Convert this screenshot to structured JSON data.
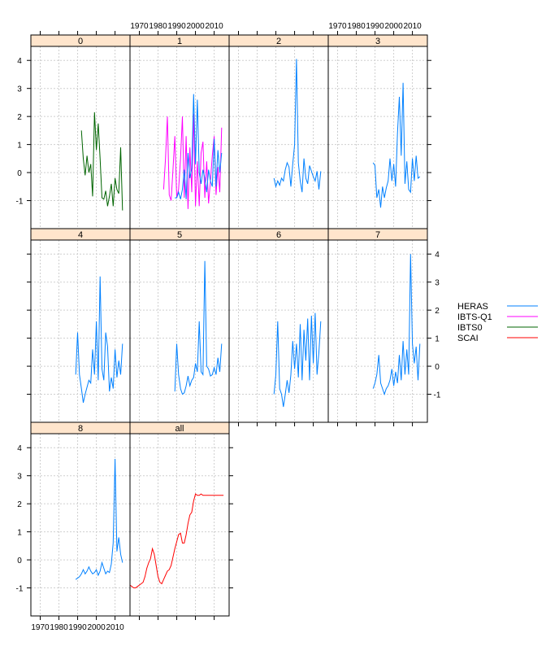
{
  "chart_data": {
    "type": "line",
    "title": "",
    "xlabel": "",
    "ylabel": "",
    "xlim": [
      1965,
      2018
    ],
    "ylim": [
      -2,
      4.5
    ],
    "x_ticks": [
      1970,
      1980,
      1990,
      2000,
      2010
    ],
    "y_ticks": [
      -1,
      0,
      1,
      2,
      3,
      4
    ],
    "grid": true,
    "legend_placement": "right",
    "legend": [
      {
        "name": "HERAS",
        "color": "#0080ff"
      },
      {
        "name": "IBTS-Q1",
        "color": "#ff00ff"
      },
      {
        "name": "IBTS0",
        "color": "#006400"
      },
      {
        "name": "SCAI",
        "color": "#ff0000"
      }
    ],
    "panels": [
      {
        "label": "0",
        "series": [
          {
            "name": "IBTS0",
            "x": [
              1992,
              1993,
              1994,
              1995,
              1996,
              1997,
              1998,
              1999,
              2000,
              2001,
              2002,
              2003,
              2004,
              2005,
              2006,
              2007,
              2008,
              2009,
              2010,
              2011,
              2012,
              2013,
              2014
            ],
            "y": [
              1.5,
              0.5,
              -0.1,
              0.6,
              0.0,
              0.3,
              -0.85,
              2.15,
              0.8,
              1.75,
              0.5,
              -0.9,
              -0.95,
              -0.65,
              -1.2,
              -0.85,
              -0.4,
              -1.2,
              -0.2,
              -0.6,
              -0.75,
              0.9,
              -1.35
            ]
          }
        ]
      },
      {
        "label": "1",
        "series": [
          {
            "name": "IBTS-Q1",
            "x": [
              1983,
              1984,
              1985,
              1986,
              1987,
              1988,
              1989,
              1990,
              1991,
              1992,
              1993,
              1994,
              1995,
              1996,
              1997,
              1998,
              1999,
              2000,
              2001,
              2002,
              2003,
              2004,
              2005,
              2006,
              2007,
              2008,
              2009,
              2010,
              2011,
              2012,
              2013,
              2014
            ],
            "y": [
              -0.6,
              0.5,
              2.0,
              -0.8,
              -1.0,
              0.1,
              1.3,
              -0.9,
              -0.6,
              0.5,
              2.0,
              -0.9,
              1.3,
              -1.3,
              0.9,
              -0.7,
              2.1,
              -1.2,
              0.4,
              -1.2,
              0.7,
              1.1,
              -0.9,
              0.4,
              -1.1,
              -0.3,
              0.6,
              1.3,
              -0.8,
              0.2,
              -0.7,
              1.6
            ]
          },
          {
            "name": "HERAS",
            "x": [
              1989,
              1990,
              1991,
              1992,
              1993,
              1994,
              1995,
              1996,
              1997,
              1998,
              1999,
              2000,
              2001,
              2002,
              2003,
              2004,
              2005,
              2006,
              2007,
              2008,
              2009,
              2010,
              2011,
              2012,
              2013,
              2014
            ],
            "y": [
              -0.9,
              -0.9,
              -0.7,
              -0.95,
              -0.6,
              0.1,
              -0.95,
              0.7,
              -0.2,
              0.15,
              2.8,
              0.3,
              2.6,
              0.0,
              -0.4,
              0.1,
              -0.2,
              -0.7,
              0.1,
              -0.3,
              -0.5,
              1.2,
              -0.5,
              0.8,
              0.0,
              0.7
            ]
          }
        ]
      },
      {
        "label": "2",
        "series": [
          {
            "name": "HERAS",
            "x": [
              1989,
              1990,
              1991,
              1992,
              1993,
              1994,
              1995,
              1996,
              1997,
              1998,
              1999,
              2000,
              2001,
              2002,
              2003,
              2004,
              2005,
              2006,
              2007,
              2008,
              2009,
              2010,
              2011,
              2012,
              2013,
              2014
            ],
            "y": [
              -0.2,
              -0.5,
              -0.3,
              -0.45,
              -0.2,
              -0.3,
              0.1,
              0.35,
              0.2,
              -0.5,
              0.3,
              1.0,
              4.05,
              0.35,
              -0.3,
              -0.7,
              0.5,
              -0.2,
              -0.4,
              0.25,
              0.05,
              -0.15,
              -0.3,
              0.05,
              -0.6,
              0.05
            ]
          }
        ]
      },
      {
        "label": "3",
        "series": [
          {
            "name": "HERAS",
            "x": [
              1989,
              1990,
              1991,
              1992,
              1993,
              1994,
              1995,
              1996,
              1997,
              1998,
              1999,
              2000,
              2001,
              2002,
              2003,
              2004,
              2005,
              2006,
              2007,
              2008,
              2009,
              2010,
              2011,
              2012,
              2013,
              2014
            ],
            "y": [
              0.35,
              0.25,
              -0.9,
              -0.6,
              -1.25,
              -0.5,
              -0.9,
              -0.55,
              -0.3,
              0.5,
              -0.3,
              0.3,
              -0.5,
              1.4,
              2.7,
              0.6,
              3.2,
              -0.4,
              0.4,
              -0.6,
              -0.7,
              0.5,
              -0.3,
              0.6,
              -0.2,
              -0.15
            ]
          }
        ]
      },
      {
        "label": "4",
        "series": [
          {
            "name": "HERAS",
            "x": [
              1989,
              1990,
              1991,
              1992,
              1993,
              1994,
              1995,
              1996,
              1997,
              1998,
              1999,
              2000,
              2001,
              2002,
              2003,
              2004,
              2005,
              2006,
              2007,
              2008,
              2009,
              2010,
              2011,
              2012,
              2013,
              2014
            ],
            "y": [
              -0.3,
              1.2,
              -0.3,
              -0.8,
              -1.3,
              -1.0,
              -0.75,
              -0.5,
              -0.6,
              0.6,
              -0.3,
              1.6,
              -0.5,
              3.2,
              -0.1,
              -0.5,
              1.2,
              0.7,
              -0.9,
              -0.4,
              -0.8,
              0.6,
              -0.4,
              0.2,
              -0.3,
              0.8
            ]
          }
        ]
      },
      {
        "label": "5",
        "series": [
          {
            "name": "HERAS",
            "x": [
              1989,
              1990,
              1991,
              1992,
              1993,
              1994,
              1995,
              1996,
              1997,
              1998,
              1999,
              2000,
              2001,
              2002,
              2003,
              2004,
              2005,
              2006,
              2007,
              2008,
              2009,
              2010,
              2011,
              2012,
              2013,
              2014
            ],
            "y": [
              -0.9,
              0.8,
              -0.3,
              -0.8,
              -1.0,
              -0.95,
              -0.7,
              -0.35,
              -0.7,
              -0.5,
              -0.4,
              0.1,
              -0.2,
              1.6,
              -0.2,
              -0.3,
              3.75,
              0.0,
              -0.1,
              -0.35,
              -0.3,
              -0.05,
              -0.3,
              0.3,
              -0.2,
              0.8
            ]
          }
        ]
      },
      {
        "label": "6",
        "series": [
          {
            "name": "HERAS",
            "x": [
              1989,
              1990,
              1991,
              1992,
              1993,
              1994,
              1995,
              1996,
              1997,
              1998,
              1999,
              2000,
              2001,
              2002,
              2003,
              2004,
              2005,
              2006,
              2007,
              2008,
              2009,
              2010,
              2011,
              2012,
              2013,
              2014
            ],
            "y": [
              -1.0,
              -0.3,
              1.6,
              -0.8,
              -1.0,
              -1.45,
              -1.0,
              -0.5,
              -0.95,
              -0.3,
              0.9,
              -0.1,
              0.8,
              -0.4,
              1.5,
              -0.5,
              1.3,
              0.2,
              1.7,
              -0.5,
              1.8,
              0.1,
              1.9,
              -0.3,
              0.5,
              1.6
            ]
          }
        ]
      },
      {
        "label": "7",
        "series": [
          {
            "name": "HERAS",
            "x": [
              1989,
              1990,
              1991,
              1992,
              1993,
              1994,
              1995,
              1996,
              1997,
              1998,
              1999,
              2000,
              2001,
              2002,
              2003,
              2004,
              2005,
              2006,
              2007,
              2008,
              2009,
              2010,
              2011,
              2012,
              2013,
              2014
            ],
            "y": [
              -0.8,
              -0.6,
              -0.3,
              0.4,
              -0.6,
              -0.8,
              -1.0,
              -0.8,
              -0.7,
              -0.5,
              -0.1,
              -0.7,
              -0.2,
              -0.6,
              0.4,
              -0.5,
              0.9,
              -0.3,
              0.6,
              -0.3,
              4.0,
              0.8,
              0.1,
              0.7,
              -0.5,
              0.8
            ]
          }
        ]
      },
      {
        "label": "8",
        "series": [
          {
            "name": "HERAS",
            "x": [
              1989,
              1990,
              1991,
              1992,
              1993,
              1994,
              1995,
              1996,
              1997,
              1998,
              1999,
              2000,
              2001,
              2002,
              2003,
              2004,
              2005,
              2006,
              2007,
              2008,
              2009,
              2010,
              2011,
              2012,
              2013,
              2014
            ],
            "y": [
              -0.7,
              -0.65,
              -0.6,
              -0.5,
              -0.35,
              -0.5,
              -0.4,
              -0.25,
              -0.4,
              -0.5,
              -0.45,
              -0.35,
              -0.55,
              -0.4,
              -0.1,
              -0.3,
              -0.5,
              -0.4,
              -0.45,
              -0.15,
              0.6,
              3.6,
              0.3,
              0.8,
              0.2,
              -0.1
            ]
          }
        ]
      },
      {
        "label": "all",
        "series": [
          {
            "name": "SCAI",
            "x": [
              1965,
              1966,
              1967,
              1968,
              1969,
              1970,
              1971,
              1972,
              1973,
              1974,
              1975,
              1976,
              1977,
              1978,
              1979,
              1980,
              1981,
              1982,
              1983,
              1984,
              1985,
              1986,
              1987,
              1988,
              1989,
              1990,
              1991,
              1992,
              1993,
              1994,
              1995,
              1996,
              1997,
              1998,
              1999,
              2000,
              2001,
              2002,
              2003,
              2004,
              2005,
              2006,
              2007,
              2008,
              2009,
              2010,
              2011,
              2012,
              2013,
              2014,
              2015
            ],
            "y": [
              -0.9,
              -0.95,
              -1.0,
              -1.0,
              -0.95,
              -0.9,
              -0.85,
              -0.8,
              -0.6,
              -0.3,
              -0.1,
              0.05,
              0.4,
              0.2,
              -0.2,
              -0.6,
              -0.8,
              -0.85,
              -0.7,
              -0.55,
              -0.4,
              -0.35,
              -0.2,
              0.1,
              0.4,
              0.65,
              0.9,
              0.95,
              0.6,
              0.6,
              0.9,
              1.3,
              1.6,
              1.7,
              2.1,
              2.35,
              2.3,
              2.3,
              2.35,
              2.3,
              2.3,
              2.3,
              2.3,
              2.3,
              2.3,
              2.3,
              2.3,
              2.3,
              2.3,
              2.3,
              2.3
            ]
          }
        ]
      }
    ]
  }
}
